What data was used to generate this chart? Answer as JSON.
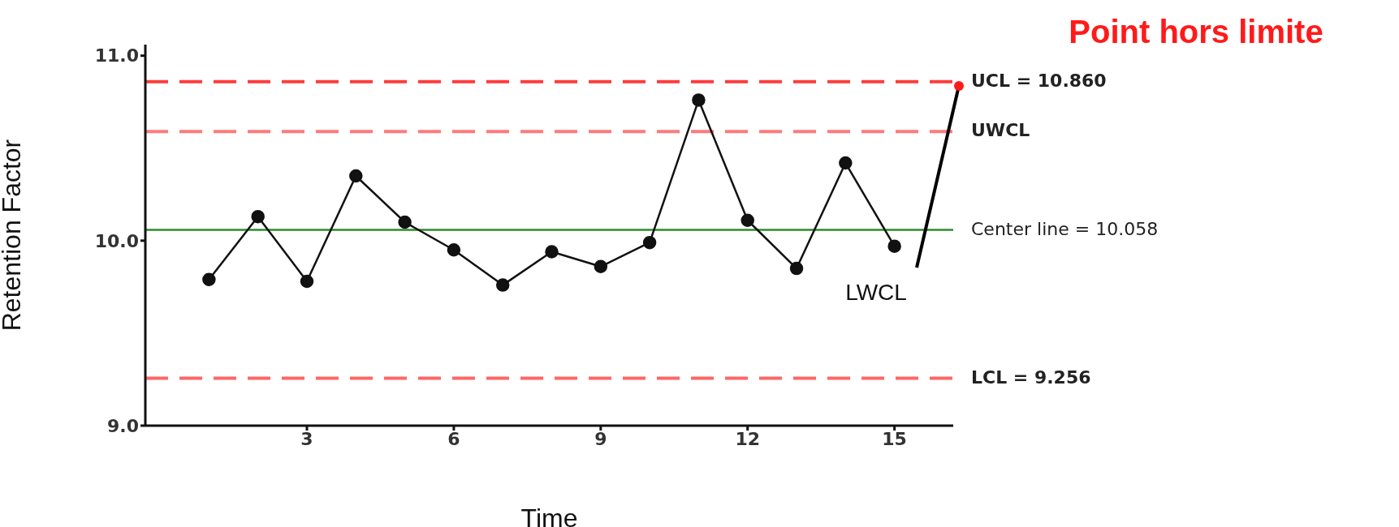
{
  "chart_data": {
    "type": "line",
    "xlabel": "Time",
    "ylabel": "Retention Factor",
    "x": [
      1,
      2,
      3,
      4,
      5,
      6,
      7,
      8,
      9,
      10,
      11,
      12,
      13,
      14,
      15
    ],
    "values": [
      9.79,
      10.13,
      9.78,
      10.35,
      10.1,
      9.95,
      9.76,
      9.94,
      9.86,
      9.99,
      10.76,
      10.11,
      9.85,
      10.42,
      9.97
    ],
    "color": "#111111",
    "marker": "circle",
    "line_style": "solid",
    "xlim": [
      -0.3,
      16.2
    ],
    "xticks": [
      3,
      6,
      9,
      12,
      15
    ],
    "ylim": [
      9.0,
      11.06
    ],
    "yticks": [
      {
        "value": 9,
        "label": "9.0"
      },
      {
        "value": 10,
        "label": "10.0"
      },
      {
        "value": 11,
        "label": "11.0"
      }
    ],
    "grid": false,
    "legend": false,
    "ref_lines": [
      {
        "axis": "y",
        "value": 10.86,
        "label": "UCL = 10.860",
        "color": "#ff3b3b",
        "line_style": "dashed"
      },
      {
        "axis": "y",
        "value": 10.59,
        "label": "UWCL",
        "color": "#ff7a7a",
        "line_style": "dashed"
      },
      {
        "axis": "y",
        "value": 10.058,
        "label": "Center line = 10.058",
        "color": "#2e8b2e",
        "line_style": "solid"
      },
      {
        "axis": "y",
        "value": 9.256,
        "label": "LCL = 9.256",
        "color": "#ff6666",
        "line_style": "dashed"
      }
    ],
    "annotations": [
      "Point hors limite",
      "LWCL"
    ]
  }
}
